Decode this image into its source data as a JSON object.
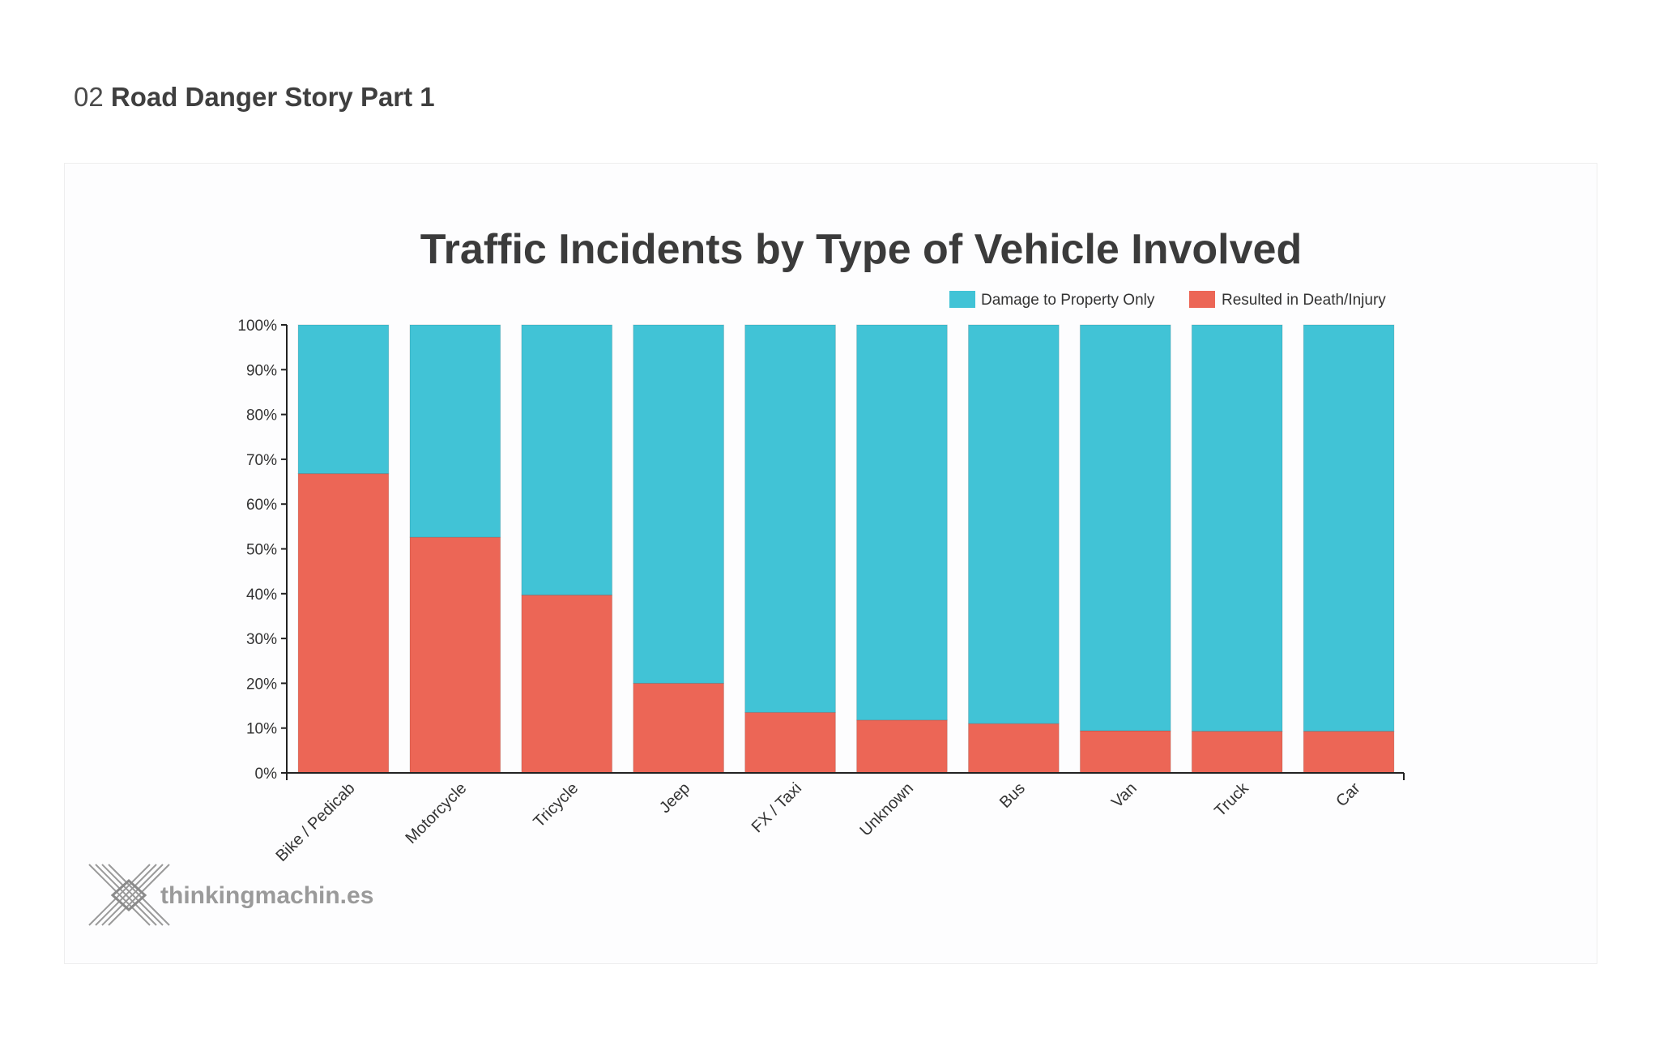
{
  "heading": {
    "number": "02",
    "title": "Road Danger Story Part 1"
  },
  "logo": {
    "text": "thinkingmachin.es"
  },
  "colors": {
    "property": "#41c3d6",
    "injury": "#ec6656",
    "axis": "#222222"
  },
  "chart_data": {
    "type": "bar",
    "stacked": true,
    "title": "Traffic Incidents by Type of Vehicle Involved",
    "xlabel": "",
    "ylabel": "",
    "ylim": [
      0,
      100
    ],
    "yticks": [
      "0%",
      "10%",
      "20%",
      "30%",
      "40%",
      "50%",
      "60%",
      "70%",
      "80%",
      "90%",
      "100%"
    ],
    "legend_position": "top-right",
    "categories": [
      "Bike / Pedicab",
      "Motorcycle",
      "Tricycle",
      "Jeep",
      "FX / Taxi",
      "Unknown",
      "Bus",
      "Van",
      "Truck",
      "Car"
    ],
    "series": [
      {
        "name": "Resulted in Death/Injury",
        "color": "#ec6656",
        "values": [
          66.8,
          52.6,
          39.7,
          20.0,
          13.5,
          11.8,
          11.0,
          9.4,
          9.3,
          9.3
        ]
      },
      {
        "name": "Damage to Property Only",
        "color": "#41c3d6",
        "values": [
          33.2,
          47.4,
          60.3,
          80.0,
          86.5,
          88.2,
          89.0,
          90.6,
          90.7,
          90.7
        ]
      }
    ],
    "legend": [
      {
        "label": "Damage to Property Only",
        "color": "#41c3d6"
      },
      {
        "label": "Resulted in Death/Injury",
        "color": "#ec6656"
      }
    ]
  }
}
